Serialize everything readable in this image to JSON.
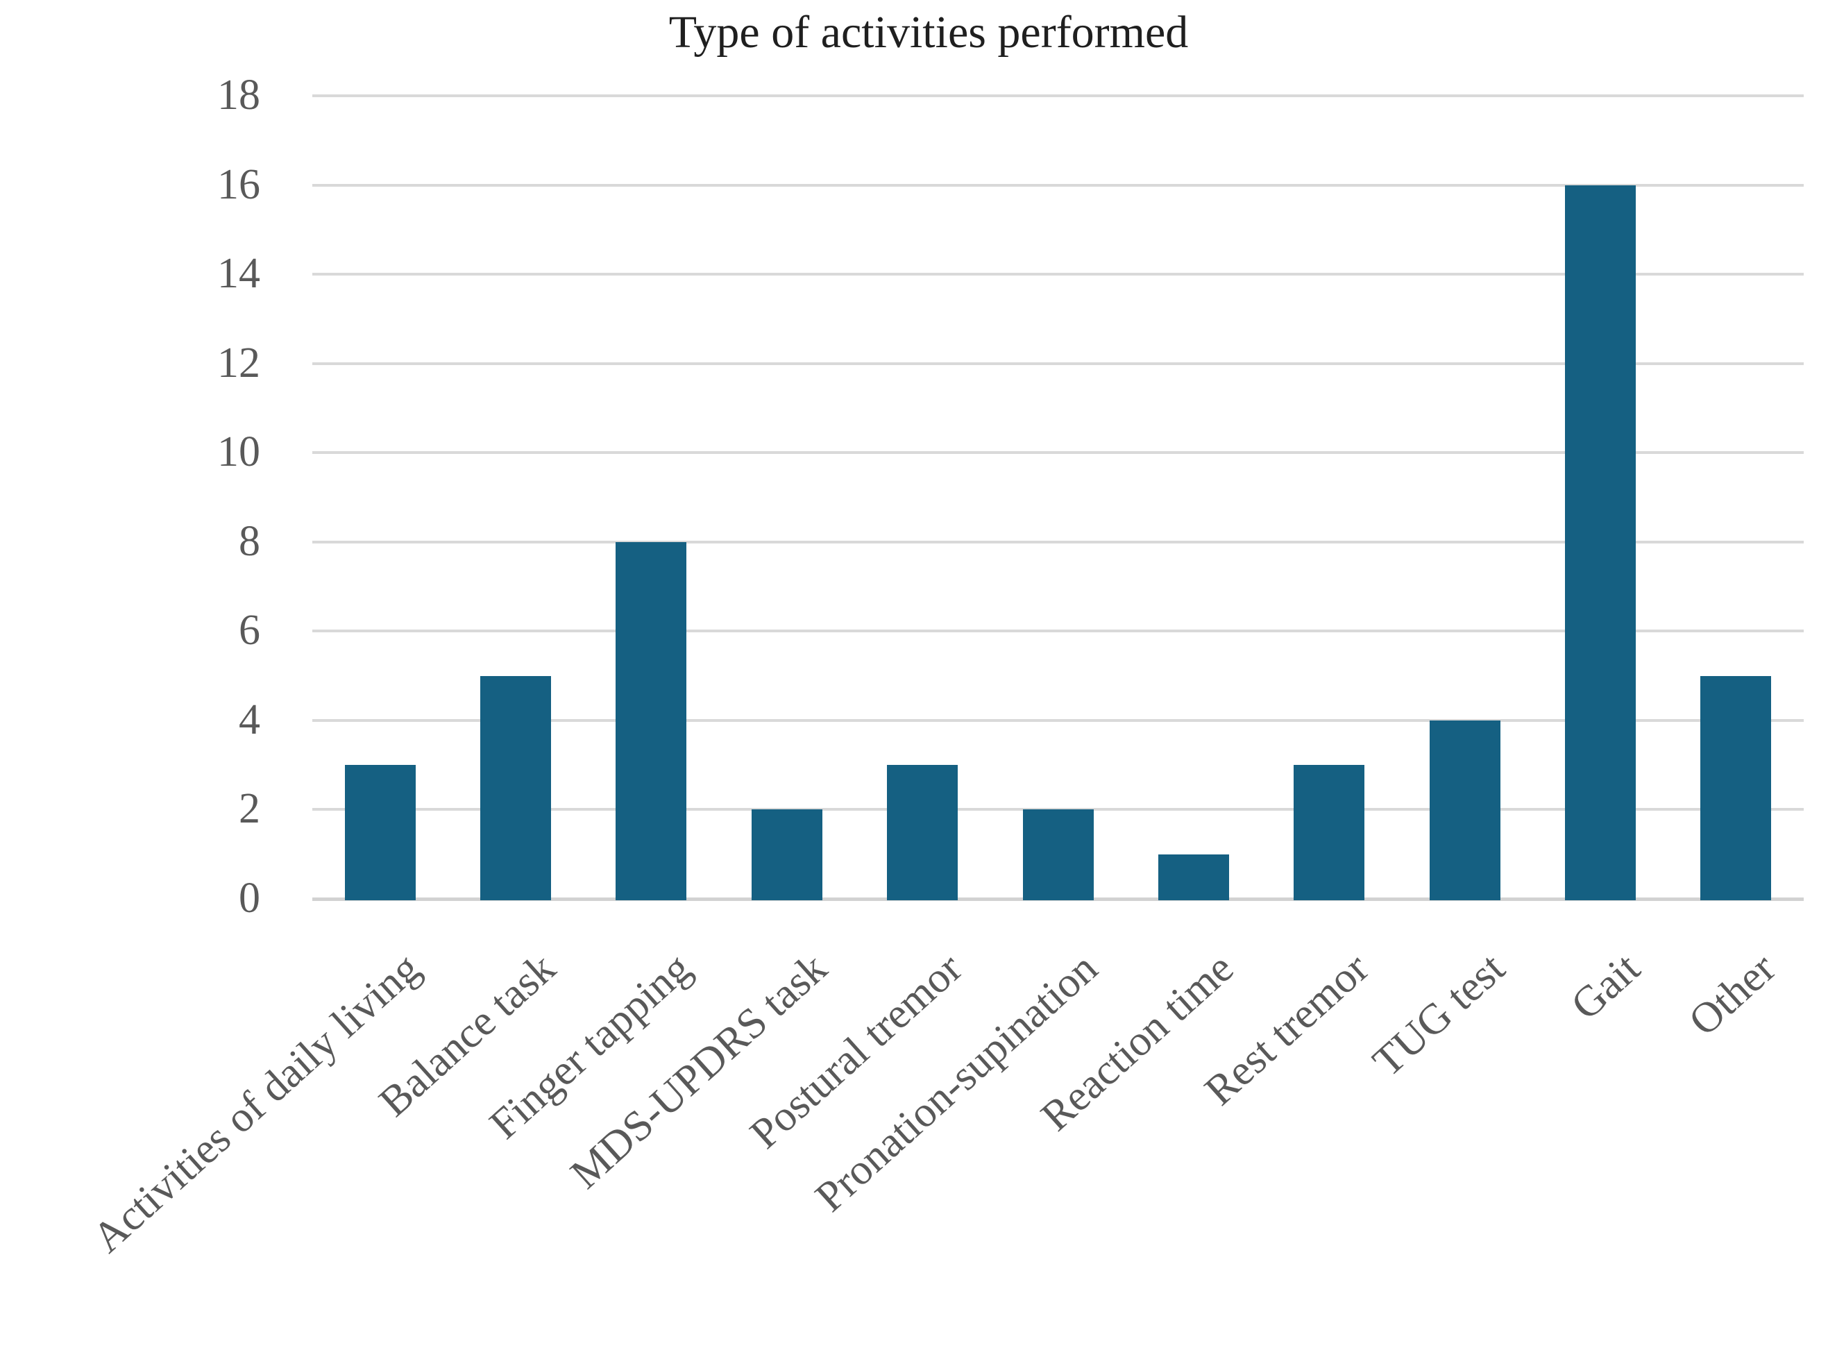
{
  "title": "Type of activities performed",
  "chart_data": {
    "type": "bar",
    "title": "Type of activities performed",
    "categories": [
      "Activities of daily living",
      "Balance task",
      "Finger tapping",
      "MDS-UPDRS task",
      "Postural tremor",
      "Pronation-supination",
      "Reaction time",
      "Rest tremor",
      "TUG test",
      "Gait",
      "Other"
    ],
    "values": [
      3,
      5,
      8,
      2,
      3,
      2,
      1,
      3,
      4,
      16,
      5
    ],
    "xlabel": "",
    "ylabel": "",
    "ylim": [
      0,
      18
    ],
    "ytick_step": 2,
    "yticks": [
      0,
      2,
      4,
      6,
      8,
      10,
      12,
      14,
      16,
      18
    ],
    "grid": true,
    "legend_position": "none",
    "x_label_rotation_deg": 42,
    "colors": {
      "bar": "#156082",
      "gridline": "#d9d9d9",
      "axis_line": "#d2d2d2",
      "tick_labels": "#595959",
      "title": "#1f1f1f",
      "background": "#ffffff"
    }
  }
}
